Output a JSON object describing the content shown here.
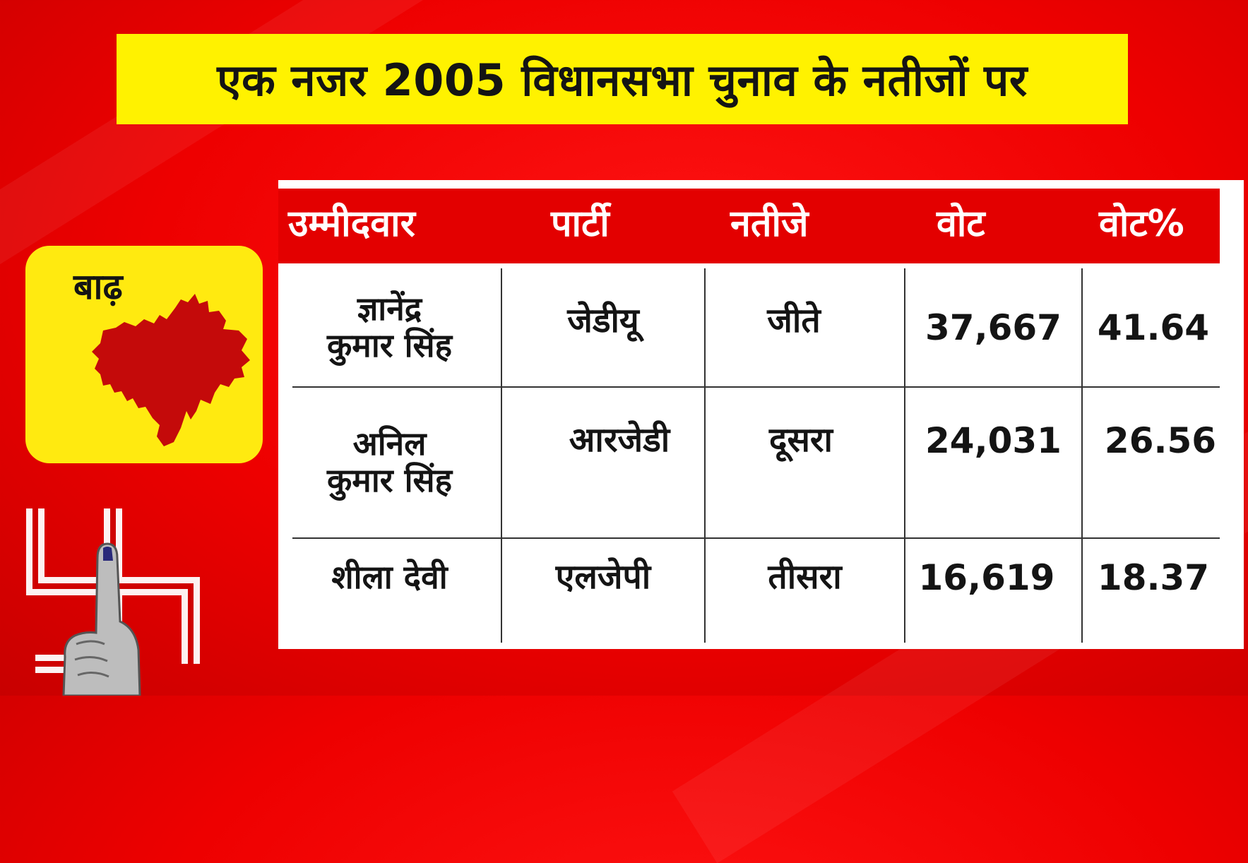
{
  "title": "एक नजर 2005 विधानसभा चुनाव के नतीजों पर",
  "district": "बाढ़",
  "colors": {
    "background": "#ee0000",
    "title_bg": "#fff200",
    "card_bg": "#ffea10",
    "header_bg": "#e30000",
    "map_fill": "#c40a0a"
  },
  "table": {
    "headers": [
      "उम्मीदवार",
      "पार्टी",
      "नतीजे",
      "वोट",
      "वोट%"
    ],
    "rows": [
      {
        "candidate_line1": "ज्ञानेंद्र",
        "candidate_line2": "कुमार सिंह",
        "party": "जेडीयू",
        "result": "जीते",
        "votes": "37,667",
        "vote_pct": "41.64"
      },
      {
        "candidate_line1": "अनिल",
        "candidate_line2": "कुमार सिंह",
        "party": "आरजेडी",
        "result": "दूसरा",
        "votes": "24,031",
        "vote_pct": "26.56"
      },
      {
        "candidate_line1": "शीला देवी",
        "candidate_line2": "",
        "party": "एलजेपी",
        "result": "तीसरा",
        "votes": "16,619",
        "vote_pct": "18.37"
      }
    ]
  },
  "icons": {
    "map": "district-map-icon",
    "logo": "election-swastika-finger-icon"
  }
}
